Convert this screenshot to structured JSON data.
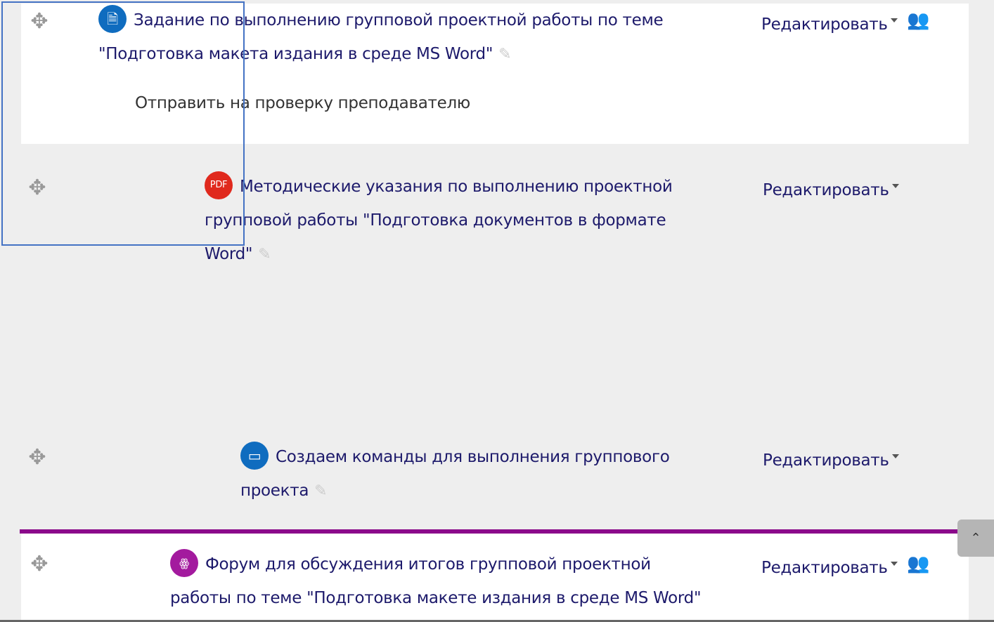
{
  "items": [
    {
      "title_line1": "Задание по выполнению групповой проектной работы по теме",
      "title_line2": "\"Подготовка макета издания в среде MS Word\"",
      "icon": "assignment-icon",
      "icon_color": "#0f6cbf",
      "note": "Отправить на проверку преподавателю",
      "edit_label": "Редактировать",
      "group_mode": true
    },
    {
      "title_line1": "Методические указания по выполнению проектной",
      "title_line2": "групповой работы \"Подготовка документов в формате",
      "title_line3": "Word\"",
      "icon": "pdf-icon",
      "icon_color": "#e0291d",
      "edit_label": "Редактировать"
    },
    {
      "title_line1": "Создаем команды для выполнения группового",
      "title_line2": "проекта",
      "icon": "page-icon",
      "icon_color": "#0f6cbf",
      "edit_label": "Редактировать"
    },
    {
      "title_line1": "Форум для обсуждения итогов групповой проектной",
      "title_line2": "работы по теме \"Подготовка макете издания в среде MS Word\"",
      "icon": "forum-icon",
      "icon_color": "#a31a9e",
      "edit_label": "Редактировать",
      "group_mode": true
    }
  ],
  "colors": {
    "link": "#1d1a6b",
    "divider": "#8b0a8b",
    "selection": "#4472c4"
  }
}
